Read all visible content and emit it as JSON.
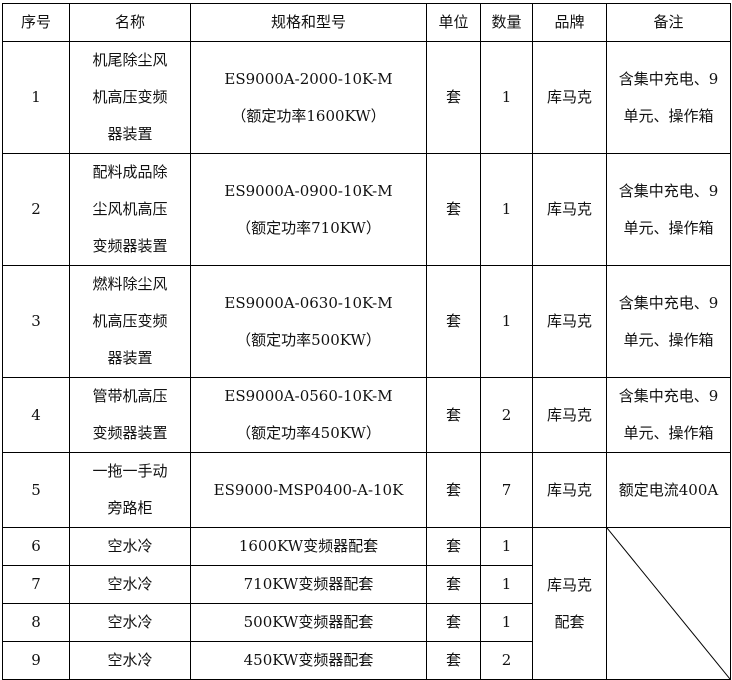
{
  "headers": [
    "序号",
    "名称",
    "规格和型号",
    "单位",
    "数量",
    "品牌",
    "备注"
  ],
  "rows": [
    {
      "no": "1",
      "name": [
        "机尾除尘风",
        "机高压变频",
        "器装置"
      ],
      "spec": [
        "ES9000A-2000-10K-M",
        "（额定功率1600KW）"
      ],
      "unit": "套",
      "qty": "1",
      "brand": "库马克",
      "note": [
        "含集中充电、9",
        "单元、操作箱"
      ]
    },
    {
      "no": "2",
      "name": [
        "配料成品除",
        "尘风机高压",
        "变频器装置"
      ],
      "spec": [
        "ES9000A-0900-10K-M",
        "（额定功率710KW）"
      ],
      "unit": "套",
      "qty": "1",
      "brand": "库马克",
      "note": [
        "含集中充电、9",
        "单元、操作箱"
      ]
    },
    {
      "no": "3",
      "name": [
        "燃料除尘风",
        "机高压变频",
        "器装置"
      ],
      "spec": [
        "ES9000A-0630-10K-M",
        "（额定功率500KW）"
      ],
      "unit": "套",
      "qty": "1",
      "brand": "库马克",
      "note": [
        "含集中充电、9",
        "单元、操作箱"
      ]
    },
    {
      "no": "4",
      "name": [
        "管带机高压",
        "变频器装置"
      ],
      "spec": [
        "ES9000A-0560-10K-M",
        "（额定功率450KW）"
      ],
      "unit": "套",
      "qty": "2",
      "brand": "库马克",
      "note": [
        "含集中充电、9",
        "单元、操作箱"
      ]
    },
    {
      "no": "5",
      "name": [
        "一拖一手动",
        "旁路柜"
      ],
      "spec": [
        "ES9000-MSP0400-A-10K"
      ],
      "unit": "套",
      "qty": "7",
      "brand": "库马克",
      "note": [
        "额定电流400A"
      ]
    },
    {
      "no": "6",
      "name": [
        "空水冷"
      ],
      "spec": [
        "1600KW变频器配套"
      ],
      "unit": "套",
      "qty": "1"
    },
    {
      "no": "7",
      "name": [
        "空水冷"
      ],
      "spec": [
        "710KW变频器配套"
      ],
      "unit": "套",
      "qty": "1"
    },
    {
      "no": "8",
      "name": [
        "空水冷"
      ],
      "spec": [
        "500KW变频器配套"
      ],
      "unit": "套",
      "qty": "1"
    },
    {
      "no": "9",
      "name": [
        "空水冷"
      ],
      "spec": [
        "450KW变频器配套"
      ],
      "unit": "套",
      "qty": "2"
    }
  ],
  "merged_brand": [
    "库马克",
    "配套"
  ]
}
